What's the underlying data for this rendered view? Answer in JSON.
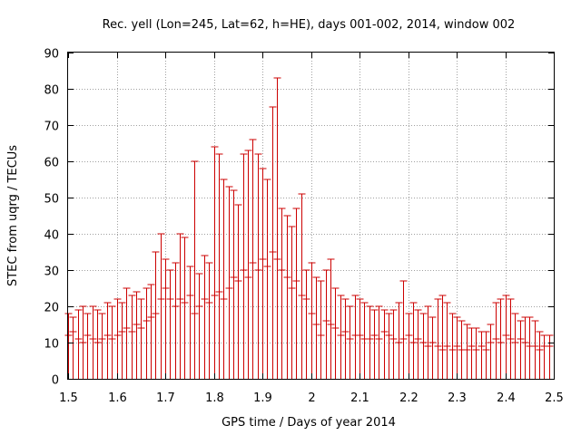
{
  "chart_data": {
    "type": "scatter",
    "title": "Rec. yell (Lon=245, Lat=62, h=HE), days 001-002, 2014, window 002",
    "xlabel": "GPS time / Days of year 2014",
    "ylabel": "STEC from uqrg / TECUs",
    "xlim": [
      1.5,
      2.5
    ],
    "ylim": [
      0,
      90
    ],
    "x_ticks": [
      1.5,
      1.6,
      1.7,
      1.8,
      1.9,
      2.0,
      2.1,
      2.2,
      2.3,
      2.4,
      2.5
    ],
    "x_tick_labels": [
      "1.5",
      "1.6",
      "1.7",
      "1.8",
      "1.9",
      "2",
      "2.1",
      "2.2",
      "2.3",
      "2.4",
      "2.5"
    ],
    "y_ticks": [
      0,
      10,
      20,
      30,
      40,
      50,
      60,
      70,
      80,
      90
    ],
    "y_tick_labels": [
      "0",
      "10",
      "20",
      "30",
      "40",
      "50",
      "60",
      "70",
      "80",
      "90"
    ],
    "grid": true,
    "series_color": "#cc0000",
    "series": [
      {
        "x": [
          1.5,
          1.51,
          1.52,
          1.53,
          1.54,
          1.55,
          1.56,
          1.57,
          1.58,
          1.59,
          1.6,
          1.61,
          1.62,
          1.63,
          1.64,
          1.65,
          1.66,
          1.67,
          1.68,
          1.69,
          1.7,
          1.71,
          1.72,
          1.73,
          1.74,
          1.75,
          1.76,
          1.77,
          1.78,
          1.79,
          1.8,
          1.81,
          1.82,
          1.83,
          1.84,
          1.85,
          1.86,
          1.87,
          1.88,
          1.89,
          1.9,
          1.91,
          1.92,
          1.93,
          1.94,
          1.95,
          1.96,
          1.97,
          1.98,
          1.99,
          2.0,
          2.01,
          2.02,
          2.03,
          2.04,
          2.05,
          2.06,
          2.07,
          2.08,
          2.09,
          2.1,
          2.11,
          2.12,
          2.13,
          2.14,
          2.15,
          2.16,
          2.17,
          2.18,
          2.19,
          2.2,
          2.21,
          2.22,
          2.23,
          2.24,
          2.25,
          2.26,
          2.27,
          2.28,
          2.29,
          2.3,
          2.31,
          2.32,
          2.33,
          2.34,
          2.35,
          2.36,
          2.37,
          2.38,
          2.39,
          2.4,
          2.41,
          2.42,
          2.43,
          2.44,
          2.45,
          2.46,
          2.47,
          2.48,
          2.49
        ],
        "y": [
          12,
          13,
          11,
          10,
          12,
          11,
          10,
          11,
          12,
          11,
          12,
          13,
          14,
          13,
          15,
          14,
          16,
          17,
          18,
          22,
          25,
          22,
          20,
          22,
          21,
          23,
          18,
          20,
          22,
          21,
          23,
          24,
          22,
          25,
          28,
          27,
          30,
          28,
          32,
          30,
          33,
          31,
          35,
          33,
          30,
          28,
          25,
          27,
          23,
          22,
          18,
          15,
          12,
          16,
          15,
          14,
          12,
          13,
          11,
          12,
          12,
          11,
          11,
          12,
          11,
          13,
          12,
          11,
          10,
          11,
          12,
          10,
          11,
          10,
          9,
          10,
          9,
          8,
          9,
          8,
          9,
          8,
          8,
          9,
          8,
          9,
          8,
          10,
          11,
          10,
          12,
          11,
          10,
          11,
          10,
          9,
          9,
          8,
          9,
          9
        ],
        "y_high": [
          18,
          17,
          19,
          20,
          18,
          20,
          19,
          18,
          21,
          20,
          22,
          21,
          25,
          23,
          24,
          22,
          25,
          26,
          35,
          40,
          33,
          30,
          32,
          40,
          39,
          31,
          60,
          29,
          34,
          32,
          64,
          62,
          55,
          53,
          52,
          48,
          62,
          63,
          66,
          62,
          58,
          55,
          75,
          83,
          47,
          45,
          42,
          47,
          51,
          30,
          32,
          28,
          27,
          30,
          33,
          25,
          23,
          22,
          20,
          23,
          22,
          21,
          20,
          19,
          20,
          19,
          18,
          19,
          21,
          27,
          18,
          21,
          19,
          18,
          20,
          17,
          22,
          23,
          21,
          18,
          17,
          16,
          15,
          14,
          14,
          13,
          13,
          15,
          21,
          22,
          23,
          22,
          18,
          16,
          17,
          17,
          16,
          13,
          12,
          12
        ],
        "y_low": [
          0,
          0,
          0,
          0,
          0,
          0,
          0,
          0,
          0,
          0,
          0,
          0,
          0,
          0,
          0,
          0,
          0,
          0,
          0,
          0,
          0,
          0,
          0,
          0,
          0,
          0,
          0,
          0,
          0,
          0,
          0,
          0,
          0,
          0,
          0,
          0,
          0,
          0,
          0,
          0,
          0,
          0,
          0,
          0,
          0,
          0,
          0,
          0,
          0,
          0,
          0,
          0,
          0,
          0,
          0,
          0,
          0,
          0,
          0,
          0,
          0,
          0,
          0,
          0,
          0,
          0,
          0,
          0,
          0,
          0,
          0,
          0,
          0,
          0,
          0,
          0,
          0,
          0,
          0,
          0,
          0,
          0,
          0,
          0,
          0,
          0,
          0,
          0,
          0,
          0,
          0,
          0,
          0,
          0,
          0,
          0,
          0,
          0,
          0,
          0
        ]
      }
    ]
  }
}
